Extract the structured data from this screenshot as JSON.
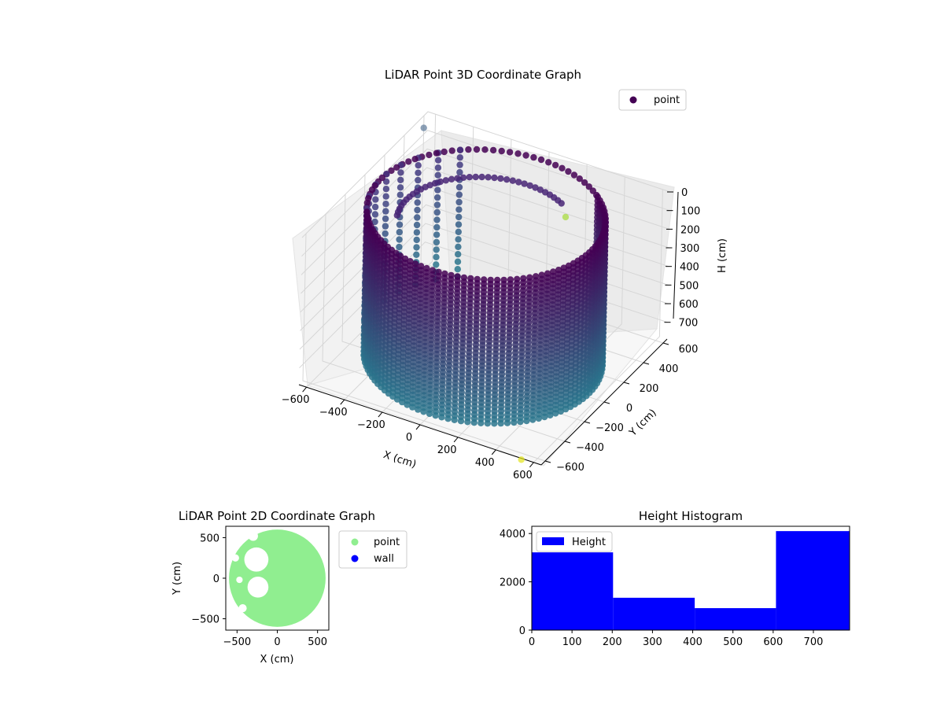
{
  "chart_data": [
    {
      "type": "scatter3d",
      "title": "LiDAR Point 3D Coordinate Graph",
      "xlabel": "X (cm)",
      "ylabel": "Y (cm)",
      "zlabel": "H (cm)",
      "xlim": [
        -640,
        640
      ],
      "ylim": [
        -640,
        640
      ],
      "zlim": [
        790,
        0
      ],
      "xticks": [
        -600,
        -400,
        -200,
        0,
        200,
        400,
        600
      ],
      "yticks": [
        -600,
        -400,
        -200,
        0,
        200,
        400,
        600
      ],
      "zticks": [
        0,
        100,
        200,
        300,
        400,
        500,
        600,
        700
      ],
      "xtick_labels": [
        "−600",
        "−400",
        "−200",
        "0",
        "200",
        "400",
        "600"
      ],
      "ytick_labels": [
        "−600",
        "−400",
        "−200",
        "0",
        "200",
        "400",
        "600"
      ],
      "ztick_labels": [
        "0",
        "100",
        "200",
        "300",
        "400",
        "500",
        "600",
        "700"
      ],
      "legend": {
        "placement": "top-right",
        "entries": [
          {
            "label": "point",
            "color": "#440154"
          }
        ]
      },
      "colormap": "viridis",
      "grid": true,
      "series": [
        {
          "name": "point",
          "shape": "wall-arc",
          "radius": 560,
          "theta_range_deg": [
            -150,
            50
          ],
          "height_range": [
            0,
            790
          ],
          "color_top": "#440154",
          "color_bottom": "#2a788e"
        },
        {
          "name": "point",
          "shape": "ring",
          "radius": 560,
          "theta_range_deg": [
            50,
            210
          ],
          "height": 0,
          "color": "#440154"
        },
        {
          "name": "point",
          "shape": "inner-arc",
          "radius": 420,
          "theta_range_deg": [
            60,
            200
          ],
          "height": 60,
          "color": "#482475"
        },
        {
          "name": "point",
          "shape": "sparse-columns",
          "radius": 560,
          "theta_range_deg": [
            130,
            215
          ],
          "height_range": [
            0,
            700
          ],
          "color_top": "#46327e",
          "color_bottom": "#277f8e"
        }
      ],
      "outliers": [
        {
          "x": -650,
          "y": 620,
          "h": 80,
          "color": "#5b7897"
        },
        {
          "x": 180,
          "y": 470,
          "h": 200,
          "color": "#a5db36"
        },
        {
          "x": 540,
          "y": -650,
          "h": 790,
          "color": "#e3e418"
        }
      ]
    },
    {
      "type": "scatter",
      "title": "LiDAR Point 2D Coordinate Graph",
      "xlabel": "X (cm)",
      "ylabel": "Y (cm)",
      "xlim": [
        -640,
        640
      ],
      "ylim": [
        -640,
        640
      ],
      "xticks": [
        -500,
        0,
        500
      ],
      "yticks": [
        -500,
        0,
        500
      ],
      "xtick_labels": [
        "−500",
        "0",
        "500"
      ],
      "ytick_labels": [
        "−500",
        "0",
        "500"
      ],
      "legend": {
        "placement": "outside-right",
        "entries": [
          {
            "label": "point",
            "color": "#90ee90"
          },
          {
            "label": "wall",
            "color": "#0000ff"
          }
        ]
      },
      "series": [
        {
          "name": "point",
          "shape": "filled-disc",
          "center": [
            0,
            0
          ],
          "radius": 600,
          "color": "#90ee90"
        },
        {
          "name": "wall",
          "color": "#0000ff",
          "points": []
        }
      ],
      "gaps": [
        {
          "x": -260,
          "y": 230,
          "r": 150
        },
        {
          "x": -240,
          "y": -110,
          "r": 130
        },
        {
          "x": -520,
          "y": 250,
          "r": 45
        },
        {
          "x": -470,
          "y": -20,
          "r": 40
        },
        {
          "x": -300,
          "y": 520,
          "r": 60
        },
        {
          "x": -430,
          "y": -370,
          "r": 50
        }
      ]
    },
    {
      "type": "bar",
      "title": "Height Histogram",
      "xlabel": "",
      "ylabel": "",
      "xlim": [
        0,
        790
      ],
      "ylim": [
        0,
        4300
      ],
      "xticks": [
        0,
        100,
        200,
        300,
        400,
        500,
        600,
        700
      ],
      "yticks": [
        0,
        2000,
        4000
      ],
      "legend": {
        "placement": "top-left",
        "entries": [
          {
            "label": "Height",
            "color": "#0000ff"
          }
        ]
      },
      "series": [
        {
          "name": "Height",
          "color": "#0000ff",
          "bins": [
            {
              "x0": 0,
              "x1": 202,
              "value": 3220
            },
            {
              "x0": 202,
              "x1": 405,
              "value": 1340
            },
            {
              "x0": 405,
              "x1": 607,
              "value": 910
            },
            {
              "x0": 607,
              "x1": 790,
              "value": 4100
            }
          ]
        }
      ]
    }
  ]
}
